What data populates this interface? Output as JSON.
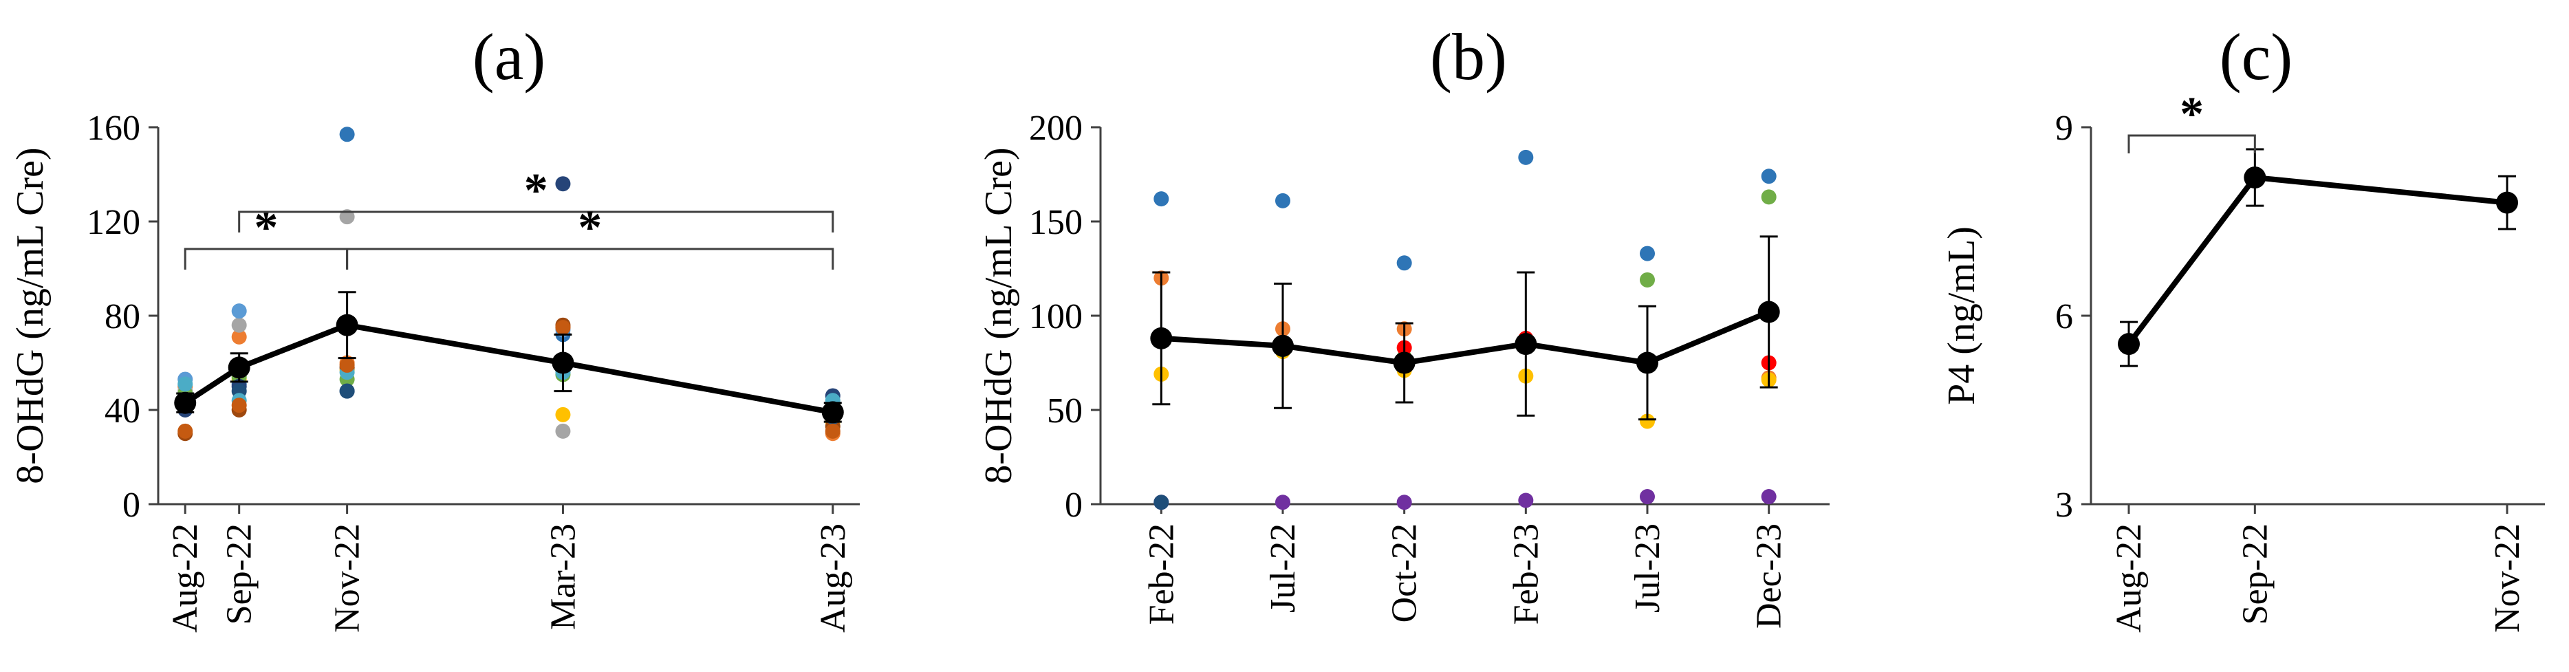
{
  "chart_data": [
    {
      "panel": "(a)",
      "type": "scatter",
      "title": "(a)",
      "ylabel": "8-OHdG (ng/mL Cre)",
      "xlabel": "",
      "ylim": [
        0,
        160
      ],
      "yticks": [
        0,
        40,
        80,
        120,
        160
      ],
      "categories": [
        "Aug-22",
        "Sep-22",
        "Nov-22",
        "Mar-23",
        "Aug-23"
      ],
      "x": [
        0,
        1,
        3,
        7,
        12
      ],
      "x_range": [
        -0.5,
        12.5
      ],
      "mean": [
        43,
        58,
        76,
        60,
        39
      ],
      "error": [
        4,
        6,
        14,
        12,
        4
      ],
      "individuals": [
        {
          "color": "#2E75B6",
          "values": [
            46,
            51,
            157,
            72,
            41
          ]
        },
        {
          "color": "#ED7D31",
          "values": [
            50,
            71,
            60,
            75,
            30
          ]
        },
        {
          "color": "#A5A5A5",
          "values": [
            48,
            76,
            122,
            31,
            36
          ]
        },
        {
          "color": "#FFC000",
          "values": [
            44,
            53,
            57,
            38,
            35
          ]
        },
        {
          "color": "#5B9BD5",
          "values": [
            53,
            82,
            58,
            74,
            43
          ]
        },
        {
          "color": "#70AD47",
          "values": [
            47,
            54,
            53,
            55,
            42
          ]
        },
        {
          "color": "#264478",
          "values": [
            40,
            50,
            48,
            136,
            46
          ]
        },
        {
          "color": "#9E480E",
          "values": [
            30,
            40,
            58,
            76,
            33
          ]
        },
        {
          "color": "#1F4E79",
          "values": [
            43,
            48,
            48,
            58,
            37
          ]
        },
        {
          "color": "#4BACC6",
          "values": [
            51,
            44,
            56,
            56,
            44
          ]
        },
        {
          "color": "#C55A11",
          "values": [
            31,
            42,
            59,
            75,
            31
          ]
        }
      ],
      "significance": [
        {
          "from": "Aug-22",
          "to": "Nov-22",
          "label": "*"
        },
        {
          "from": "Sep-22",
          "to": "Aug-23",
          "label": "*"
        },
        {
          "from": "Nov-22",
          "to": "Aug-23",
          "label": "*"
        }
      ]
    },
    {
      "panel": "(b)",
      "type": "scatter",
      "title": "(b)",
      "ylabel": "8-OHdG (ng/mL Cre)",
      "xlabel": "",
      "ylim": [
        0,
        200
      ],
      "yticks": [
        0,
        50,
        100,
        150,
        200
      ],
      "categories": [
        "Feb-22",
        "Jul-22",
        "Oct-22",
        "Feb-23",
        "Jul-23",
        "Dec-23"
      ],
      "mean": [
        88,
        84,
        75,
        85,
        75,
        102
      ],
      "error": [
        35,
        33,
        21,
        38,
        30,
        40
      ],
      "individuals": [
        {
          "color": "#2E75B6",
          "values": [
            162,
            161,
            128,
            184,
            133,
            174
          ]
        },
        {
          "color": "#ED7D31",
          "values": [
            120,
            93,
            93,
            87,
            75,
            67
          ]
        },
        {
          "color": "#FFC000",
          "values": [
            69,
            81,
            71,
            68,
            44,
            66
          ]
        },
        {
          "color": "#70AD47",
          "values": [
            88,
            82,
            78,
            87,
            119,
            163
          ]
        },
        {
          "color": "#FF0000",
          "values": [
            89,
            84,
            83,
            88,
            76,
            75
          ]
        },
        {
          "color": "#7030A0",
          "values": [
            1,
            1,
            1,
            2,
            4,
            4
          ]
        },
        {
          "color": "#1F4E79",
          "values": [
            1,
            null,
            null,
            null,
            null,
            null
          ]
        }
      ]
    },
    {
      "panel": "(c)",
      "type": "line",
      "title": "(c)",
      "ylabel": "P4 (ng/mL)",
      "xlabel": "",
      "ylim": [
        3,
        9
      ],
      "yticks": [
        3,
        6,
        9
      ],
      "categories": [
        "Aug-22",
        "Sep-22",
        "Nov-22"
      ],
      "x": [
        0,
        1,
        3
      ],
      "x_range": [
        -0.3,
        3.3
      ],
      "mean": [
        5.55,
        8.2,
        7.8
      ],
      "error": [
        0.35,
        0.45,
        0.42
      ],
      "significance": [
        {
          "from": "Aug-22",
          "to": "Sep-22",
          "label": "*"
        }
      ]
    }
  ]
}
